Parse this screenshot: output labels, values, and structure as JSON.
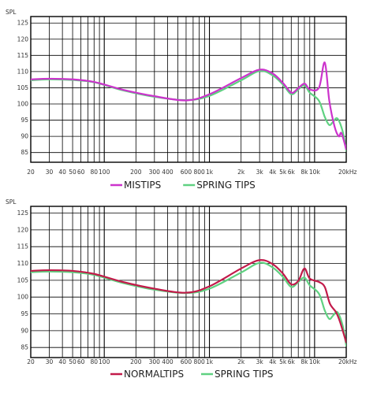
{
  "chart_data": [
    {
      "type": "line",
      "ylabel": "SPL",
      "x_scale": "log",
      "xlim": [
        20,
        20000
      ],
      "ylim": [
        82,
        127
      ],
      "grid": true,
      "legend_position": "bottom-center",
      "y_ticks": [
        125,
        120,
        115,
        110,
        105,
        100,
        95,
        90,
        85
      ],
      "x_ticks": [
        {
          "value": 20,
          "label": "20"
        },
        {
          "value": 30,
          "label": "30"
        },
        {
          "value": 40,
          "label": "40"
        },
        {
          "value": 50,
          "label": "50"
        },
        {
          "value": 60,
          "label": "60"
        },
        {
          "value": 80,
          "label": "80"
        },
        {
          "value": 100,
          "label": "100"
        },
        {
          "value": 200,
          "label": "200"
        },
        {
          "value": 300,
          "label": "300"
        },
        {
          "value": 400,
          "label": "400"
        },
        {
          "value": 600,
          "label": "600"
        },
        {
          "value": 800,
          "label": "800"
        },
        {
          "value": 1000,
          "label": "1k"
        },
        {
          "value": 2000,
          "label": "2k"
        },
        {
          "value": 3000,
          "label": "3k"
        },
        {
          "value": 4000,
          "label": "4k"
        },
        {
          "value": 5000,
          "label": "5k"
        },
        {
          "value": 6000,
          "label": "6k"
        },
        {
          "value": 8000,
          "label": "8k"
        },
        {
          "value": 10000,
          "label": "10k"
        },
        {
          "value": 20000,
          "label": "20kHz"
        }
      ],
      "series": [
        {
          "name": "MISTIPS",
          "color": "#cc33cc",
          "points": [
            [
              20,
              107.6
            ],
            [
              30,
              107.8
            ],
            [
              50,
              107.6
            ],
            [
              80,
              106.8
            ],
            [
              150,
              104.4
            ],
            [
              300,
              102.4
            ],
            [
              600,
              101.1
            ],
            [
              1000,
              103
            ],
            [
              2000,
              108
            ],
            [
              3000,
              110.6
            ],
            [
              4000,
              109.4
            ],
            [
              5000,
              106.5
            ],
            [
              6000,
              103.5
            ],
            [
              6800,
              104.5
            ],
            [
              8000,
              106.3
            ],
            [
              9000,
              104.5
            ],
            [
              11000,
              105
            ],
            [
              12500,
              112.8
            ],
            [
              13800,
              101
            ],
            [
              15500,
              93
            ],
            [
              17000,
              90
            ],
            [
              18000,
              91
            ],
            [
              20000,
              86
            ]
          ]
        },
        {
          "name": "SPRING TIPS",
          "color": "#5fd181",
          "points": [
            [
              20,
              107.3
            ],
            [
              30,
              107.6
            ],
            [
              50,
              107.4
            ],
            [
              80,
              106.7
            ],
            [
              150,
              104.2
            ],
            [
              300,
              102.2
            ],
            [
              600,
              101.2
            ],
            [
              1000,
              102.5
            ],
            [
              2000,
              107.3
            ],
            [
              3000,
              110.2
            ],
            [
              4000,
              108.8
            ],
            [
              5000,
              106
            ],
            [
              6000,
              103
            ],
            [
              7000,
              104.5
            ],
            [
              8000,
              105.8
            ],
            [
              9000,
              103.5
            ],
            [
              11000,
              101
            ],
            [
              12500,
              96
            ],
            [
              13800,
              93.5
            ],
            [
              15000,
              94.5
            ],
            [
              16500,
              95.5
            ],
            [
              18500,
              91.5
            ],
            [
              20000,
              85.5
            ]
          ]
        }
      ]
    },
    {
      "type": "line",
      "ylabel": "SPL",
      "x_scale": "log",
      "xlim": [
        20,
        20000
      ],
      "ylim": [
        82,
        127
      ],
      "grid": true,
      "legend_position": "bottom-center",
      "y_ticks": [
        125,
        120,
        115,
        110,
        105,
        100,
        95,
        90,
        85
      ],
      "x_ticks": [
        {
          "value": 20,
          "label": "20"
        },
        {
          "value": 30,
          "label": "30"
        },
        {
          "value": 40,
          "label": "40"
        },
        {
          "value": 50,
          "label": "50"
        },
        {
          "value": 60,
          "label": "60"
        },
        {
          "value": 80,
          "label": "80"
        },
        {
          "value": 100,
          "label": "100"
        },
        {
          "value": 200,
          "label": "200"
        },
        {
          "value": 300,
          "label": "300"
        },
        {
          "value": 400,
          "label": "400"
        },
        {
          "value": 600,
          "label": "600"
        },
        {
          "value": 800,
          "label": "800"
        },
        {
          "value": 1000,
          "label": "1k"
        },
        {
          "value": 2000,
          "label": "2k"
        },
        {
          "value": 3000,
          "label": "3k"
        },
        {
          "value": 4000,
          "label": "4k"
        },
        {
          "value": 5000,
          "label": "5k"
        },
        {
          "value": 6000,
          "label": "6k"
        },
        {
          "value": 8000,
          "label": "8k"
        },
        {
          "value": 10000,
          "label": "10k"
        },
        {
          "value": 20000,
          "label": "20kHz"
        }
      ],
      "series": [
        {
          "name": "NORMALTIPS",
          "color": "#c21a4a",
          "points": [
            [
              20,
              107.8
            ],
            [
              30,
              108
            ],
            [
              50,
              107.8
            ],
            [
              80,
              106.9
            ],
            [
              150,
              104.5
            ],
            [
              300,
              102.5
            ],
            [
              600,
              101.3
            ],
            [
              1000,
              103.2
            ],
            [
              2000,
              108.5
            ],
            [
              3000,
              111
            ],
            [
              4000,
              109.8
            ],
            [
              5000,
              107
            ],
            [
              6000,
              103.8
            ],
            [
              7000,
              104.8
            ],
            [
              8000,
              108.5
            ],
            [
              9000,
              105.5
            ],
            [
              11000,
              104.5
            ],
            [
              12500,
              103
            ],
            [
              14000,
              98
            ],
            [
              16000,
              95.5
            ],
            [
              17500,
              92.5
            ],
            [
              20000,
              86.5
            ]
          ]
        },
        {
          "name": "SPRING TIPS",
          "color": "#5fd181",
          "points": [
            [
              20,
              107.4
            ],
            [
              30,
              107.6
            ],
            [
              50,
              107.4
            ],
            [
              80,
              106.6
            ],
            [
              150,
              104.2
            ],
            [
              300,
              102.2
            ],
            [
              600,
              101.2
            ],
            [
              1000,
              102.5
            ],
            [
              2000,
              107.3
            ],
            [
              3000,
              110.2
            ],
            [
              4000,
              108.8
            ],
            [
              5000,
              106
            ],
            [
              6000,
              103
            ],
            [
              7000,
              104.5
            ],
            [
              8000,
              105.8
            ],
            [
              9000,
              103.5
            ],
            [
              11000,
              101
            ],
            [
              12500,
              96
            ],
            [
              13800,
              93.5
            ],
            [
              15000,
              94.5
            ],
            [
              16500,
              95.5
            ],
            [
              18500,
              91.5
            ],
            [
              20000,
              85.5
            ]
          ]
        }
      ]
    }
  ]
}
